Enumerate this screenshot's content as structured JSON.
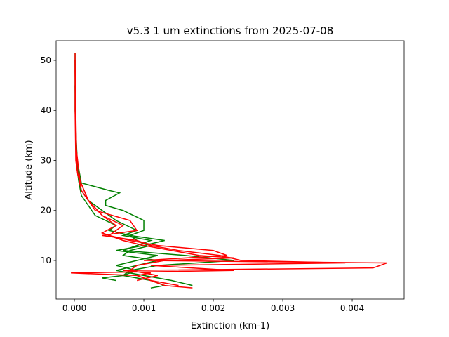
{
  "chart_data": {
    "type": "line",
    "title": "v5.3 1 um extinctions from 2025-07-08",
    "x_label": "Extinction (km-1)",
    "y_label": "Altitude (km)",
    "xlim": [
      -0.000263,
      0.004747
    ],
    "ylim": [
      2.28,
      53.93
    ],
    "xticks": [
      {
        "value": 0,
        "label": "0.000"
      },
      {
        "value": 0.001,
        "label": "0.001"
      },
      {
        "value": 0.002,
        "label": "0.002"
      },
      {
        "value": 0.003,
        "label": "0.003"
      },
      {
        "value": 0.004,
        "label": "0.004"
      }
    ],
    "yticks": [
      10,
      20,
      30,
      40,
      50
    ],
    "series": [
      {
        "color": "#008000",
        "x": [
          1e-05,
          1e-05,
          4e-05,
          8e-05,
          0.0001,
          0.0005,
          0.00065,
          0.00045,
          0.00045,
          0.0007,
          0.001,
          0.001,
          0.0008,
          0.0013,
          0.001,
          0.0006,
          0.0012,
          0.0009,
          0.0006,
          0.0009,
          0.0007,
          0.0011,
          0.0013,
          0.0011
        ],
        "values": [
          51.5,
          40,
          30,
          27,
          25.5,
          24,
          23.5,
          22,
          21,
          20,
          18,
          16,
          15,
          14,
          13,
          12,
          11,
          10,
          9,
          8,
          7,
          6,
          5,
          4.5
        ]
      },
      {
        "color": "#008000",
        "x": [
          1e-05,
          2e-05,
          5e-05,
          0.0001,
          0.0002,
          0.0004,
          0.0006,
          0.0009,
          0.0007,
          0.0011,
          0.0009,
          0.0007,
          0.0016,
          0.0023,
          0.0012,
          0.0008,
          0.0007,
          0.0004,
          0.0006
        ],
        "values": [
          50,
          35,
          28,
          24,
          22,
          20,
          18,
          16,
          15,
          14,
          13,
          12,
          11,
          10,
          9,
          8,
          7,
          6.5,
          6
        ]
      },
      {
        "color": "#008000",
        "x": [
          1e-05,
          3e-05,
          6e-05,
          0.0001,
          0.0002,
          0.0003,
          0.0006,
          0.0005,
          0.0008,
          0.0009,
          0.0011,
          0.0008,
          0.0007,
          0.0012,
          0.0009,
          0.0006,
          0.001,
          0.0014,
          0.0017
        ],
        "values": [
          45,
          30,
          26,
          23,
          21,
          19,
          17,
          16,
          15,
          14,
          13,
          12,
          11,
          10,
          9,
          8,
          7,
          6,
          5
        ]
      },
      {
        "color": "#ff0000",
        "x": [
          1e-05,
          1e-05,
          2e-05,
          5e-05,
          0.0002,
          0.0004,
          0.0007,
          0.0005,
          0.0008,
          0.0012,
          0.002,
          0.0022,
          0.001,
          0.0045,
          0.0043,
          0.0007,
          0.0011,
          0.0009,
          0.0011,
          0.0013,
          0.0017
        ],
        "values": [
          51.5,
          40,
          30,
          27,
          22,
          19,
          17,
          15,
          14,
          13,
          12,
          11,
          10,
          9.5,
          8.5,
          8,
          7.5,
          7,
          6,
          5,
          4.5
        ]
      },
      {
        "color": "#ff0000",
        "x": [
          1e-05,
          2e-05,
          4e-05,
          0.0001,
          0.0003,
          0.0008,
          0.0009,
          0.0004,
          0.0009,
          0.0011,
          0.0015,
          0.0021,
          0.0024,
          0.0039,
          0.0011,
          0.0023,
          -5e-05,
          0.0009,
          0.0011,
          0.0015
        ],
        "values": [
          50,
          35,
          28,
          24,
          20,
          18,
          16,
          15,
          14,
          13,
          12,
          11,
          10,
          9.5,
          9,
          8,
          7.5,
          7,
          6,
          5
        ]
      },
      {
        "color": "#ff0000",
        "x": [
          1e-05,
          3e-05,
          8e-05,
          0.0002,
          0.0004,
          0.0006,
          0.0004,
          0.0007,
          0.001,
          0.0014,
          0.0018,
          0.0023,
          0.0013,
          0.0009,
          0.0008,
          0.0012,
          0.0009
        ],
        "values": [
          48,
          32,
          26,
          22,
          19,
          17,
          15.5,
          14,
          13,
          12,
          11,
          10.5,
          10,
          9,
          8,
          7,
          6
        ]
      }
    ]
  }
}
